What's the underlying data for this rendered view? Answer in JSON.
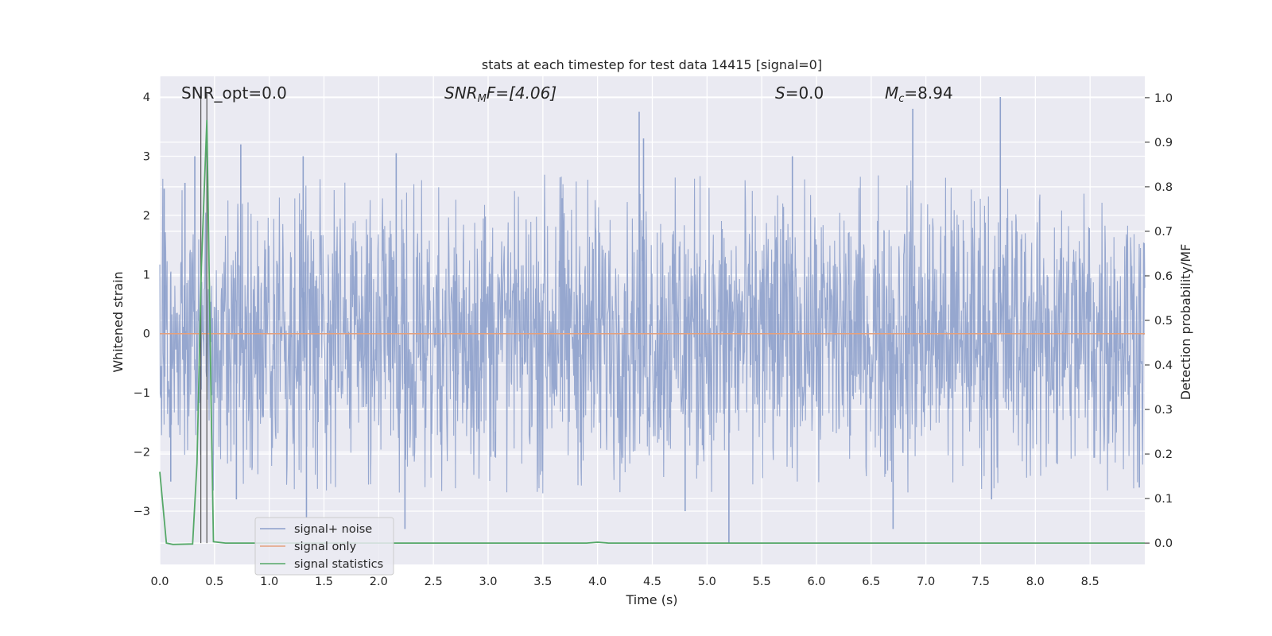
{
  "chart_data": {
    "type": "line",
    "title": "stats at each timestep for test data 14415 [signal=0]",
    "xlabel": "Time (s)",
    "ylabel": "Whitened strain",
    "y2label": "Detection probability/MF",
    "xlim": [
      0.0,
      9.0
    ],
    "ylim": [
      -3.9,
      4.35
    ],
    "y2lim": [
      -0.048,
      1.048
    ],
    "x_ticks": [
      0.0,
      0.5,
      1.0,
      1.5,
      2.0,
      2.5,
      3.0,
      3.5,
      4.0,
      4.5,
      5.0,
      5.5,
      6.0,
      6.5,
      7.0,
      7.5,
      8.0,
      8.5
    ],
    "x_tick_labels": [
      "0.0",
      "0.5",
      "1.0",
      "1.5",
      "2.0",
      "2.5",
      "3.0",
      "3.5",
      "4.0",
      "4.5",
      "5.0",
      "5.5",
      "6.0",
      "6.5",
      "7.0",
      "7.5",
      "8.0",
      "8.5"
    ],
    "y_ticks": [
      -3,
      -2,
      -1,
      0,
      1,
      2,
      3,
      4
    ],
    "y_tick_labels": [
      "−3",
      "−2",
      "−1",
      "0",
      "1",
      "2",
      "3",
      "4"
    ],
    "y2_ticks": [
      0.0,
      0.1,
      0.2,
      0.3,
      0.4,
      0.5,
      0.6,
      0.7,
      0.8,
      0.9,
      1.0
    ],
    "y2_tick_labels": [
      "0.0",
      "0.1",
      "0.2",
      "0.3",
      "0.4",
      "0.5",
      "0.6",
      "0.7",
      "0.8",
      "0.9",
      "1.0"
    ],
    "grid": true,
    "legend_position": "lower-left",
    "annotations": {
      "snr_opt": "SNR_opt=0.0",
      "snr_mf_main": "SNR",
      "snr_mf_sub": "M",
      "snr_mf_rest": "F=[4.06]",
      "s_main": "S",
      "s_rest": "=0.0",
      "mc_main": "M",
      "mc_sub": "c",
      "mc_rest": "=8.94"
    },
    "vertical_markers_x": [
      0.375,
      0.43
    ],
    "series": [
      {
        "name": "signal+ noise",
        "color": "#8da0cb",
        "axis": "left",
        "kind": "noise",
        "typical_amplitude": 1.9,
        "peaks": [
          {
            "x": 0.04,
            "y": 2.45
          },
          {
            "x": 0.23,
            "y": 2.55
          },
          {
            "x": 0.32,
            "y": 3.0
          },
          {
            "x": 0.74,
            "y": 3.2
          },
          {
            "x": 1.31,
            "y": 3.0
          },
          {
            "x": 2.16,
            "y": 3.05
          },
          {
            "x": 4.38,
            "y": 3.75
          },
          {
            "x": 4.42,
            "y": 3.3
          },
          {
            "x": 5.78,
            "y": 3.0
          },
          {
            "x": 6.88,
            "y": 3.8
          },
          {
            "x": 7.68,
            "y": 4.0
          },
          {
            "x": 2.24,
            "y": -3.3
          },
          {
            "x": 1.34,
            "y": -3.1
          },
          {
            "x": 5.2,
            "y": -3.55
          },
          {
            "x": 6.7,
            "y": -3.3
          },
          {
            "x": 4.8,
            "y": -3.0
          },
          {
            "x": 0.1,
            "y": -2.5
          },
          {
            "x": 0.7,
            "y": -2.8
          },
          {
            "x": 7.6,
            "y": -2.8
          },
          {
            "x": 8.95,
            "y": -2.6
          }
        ]
      },
      {
        "name": "signal only",
        "color": "#e5a07c",
        "axis": "left",
        "x": [
          0.0,
          9.0
        ],
        "y": [
          0.0,
          0.0
        ]
      },
      {
        "name": "signal statistics",
        "color": "#55a868",
        "axis": "right",
        "x": [
          0.0,
          0.06,
          0.12,
          0.3,
          0.34,
          0.38,
          0.43,
          0.47,
          0.49,
          0.6,
          3.9,
          4.0,
          4.1,
          9.0
        ],
        "y": [
          0.16,
          0.0,
          -0.003,
          -0.002,
          0.18,
          0.62,
          0.95,
          0.3,
          0.003,
          0.0,
          0.0,
          0.002,
          0.0,
          0.0
        ]
      }
    ]
  }
}
